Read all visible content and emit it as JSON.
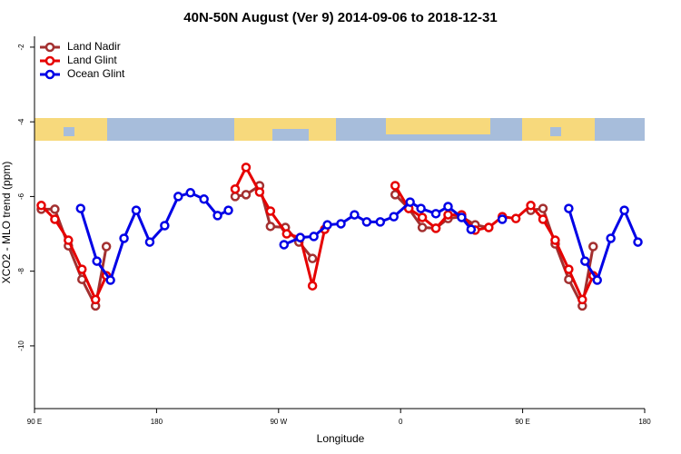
{
  "chart_data": {
    "type": "line",
    "title": "40N-50N August (Ver 9)   2014-09-06 to 2018-12-31",
    "x_label": "Longitude",
    "y_label": "XCO2 - MLO trend (ppm)",
    "xlim": [
      90,
      540
    ],
    "ylim": [
      -11.68,
      -1.71
    ],
    "xticks": [
      {
        "value": 90,
        "label": "90 E"
      },
      180,
      {
        "value": 270,
        "label": "90 W"
      },
      {
        "value": 360,
        "label": "0"
      },
      {
        "value": 450,
        "label": "90 E"
      },
      {
        "value": 540,
        "label": "180"
      }
    ],
    "yticks": [
      -2,
      -4,
      -6,
      -8,
      -10
    ],
    "legend": "top-left",
    "series": [
      {
        "name": "Land Nadir",
        "color": "#a33030",
        "x": [
          95,
          105,
          115,
          125,
          135,
          143,
          null,
          238,
          246,
          256,
          264,
          275,
          285,
          295,
          null,
          356,
          366,
          376,
          386,
          395,
          405,
          415,
          425,
          null,
          456,
          465,
          474,
          484,
          494,
          502
        ],
        "values": [
          -6.34,
          -6.34,
          -7.32,
          -8.22,
          -8.93,
          -7.34,
          null,
          -6.0,
          -5.95,
          -5.71,
          -6.8,
          -6.83,
          -7.22,
          -7.66,
          null,
          -5.95,
          -6.32,
          -6.83,
          -6.85,
          -6.59,
          -6.54,
          -6.76,
          -6.83,
          null,
          -6.37,
          -6.32,
          -7.27,
          -8.22,
          -8.93,
          -7.34
        ]
      },
      {
        "name": "Land Glint",
        "color": "#e60000",
        "x": [
          95,
          105,
          115,
          125,
          135,
          143,
          null,
          238,
          246,
          256,
          264,
          276,
          286,
          295,
          304,
          null,
          356,
          366,
          376,
          386,
          395,
          405,
          415,
          425,
          435,
          445,
          456,
          465,
          474,
          484,
          494,
          502
        ],
        "values": [
          -6.24,
          -6.61,
          -7.17,
          -7.95,
          -8.76,
          -8.12,
          null,
          -5.8,
          -5.22,
          -5.88,
          -6.39,
          -7.0,
          -7.1,
          -8.39,
          -6.88,
          null,
          -5.71,
          -6.32,
          -6.56,
          -6.85,
          -6.49,
          -6.49,
          -6.9,
          -6.83,
          -6.54,
          -6.59,
          -6.24,
          -6.61,
          -7.17,
          -7.95,
          -8.76,
          -8.12
        ]
      },
      {
        "name": "Ocean Glint",
        "color": "#0000e6",
        "x": [
          124,
          136,
          146,
          156,
          165,
          175,
          186,
          196,
          205,
          215,
          225,
          233,
          null,
          274,
          286,
          296,
          306,
          316,
          326,
          335,
          345,
          355,
          367,
          375,
          386,
          395,
          405,
          412,
          null,
          435,
          null,
          484,
          496,
          505,
          515,
          525,
          535
        ],
        "values": [
          -6.32,
          -7.73,
          -8.24,
          -7.12,
          -6.37,
          -7.22,
          -6.78,
          -6.0,
          -5.9,
          -6.07,
          -6.51,
          -6.37,
          null,
          -7.29,
          -7.1,
          -7.07,
          -6.76,
          -6.73,
          -6.49,
          -6.68,
          -6.68,
          -6.54,
          -6.15,
          -6.32,
          -6.46,
          -6.27,
          -6.56,
          -6.88,
          null,
          -6.61,
          null,
          -6.32,
          -7.73,
          -8.24,
          -7.12,
          -6.37,
          -7.22
        ]
      }
    ]
  }
}
